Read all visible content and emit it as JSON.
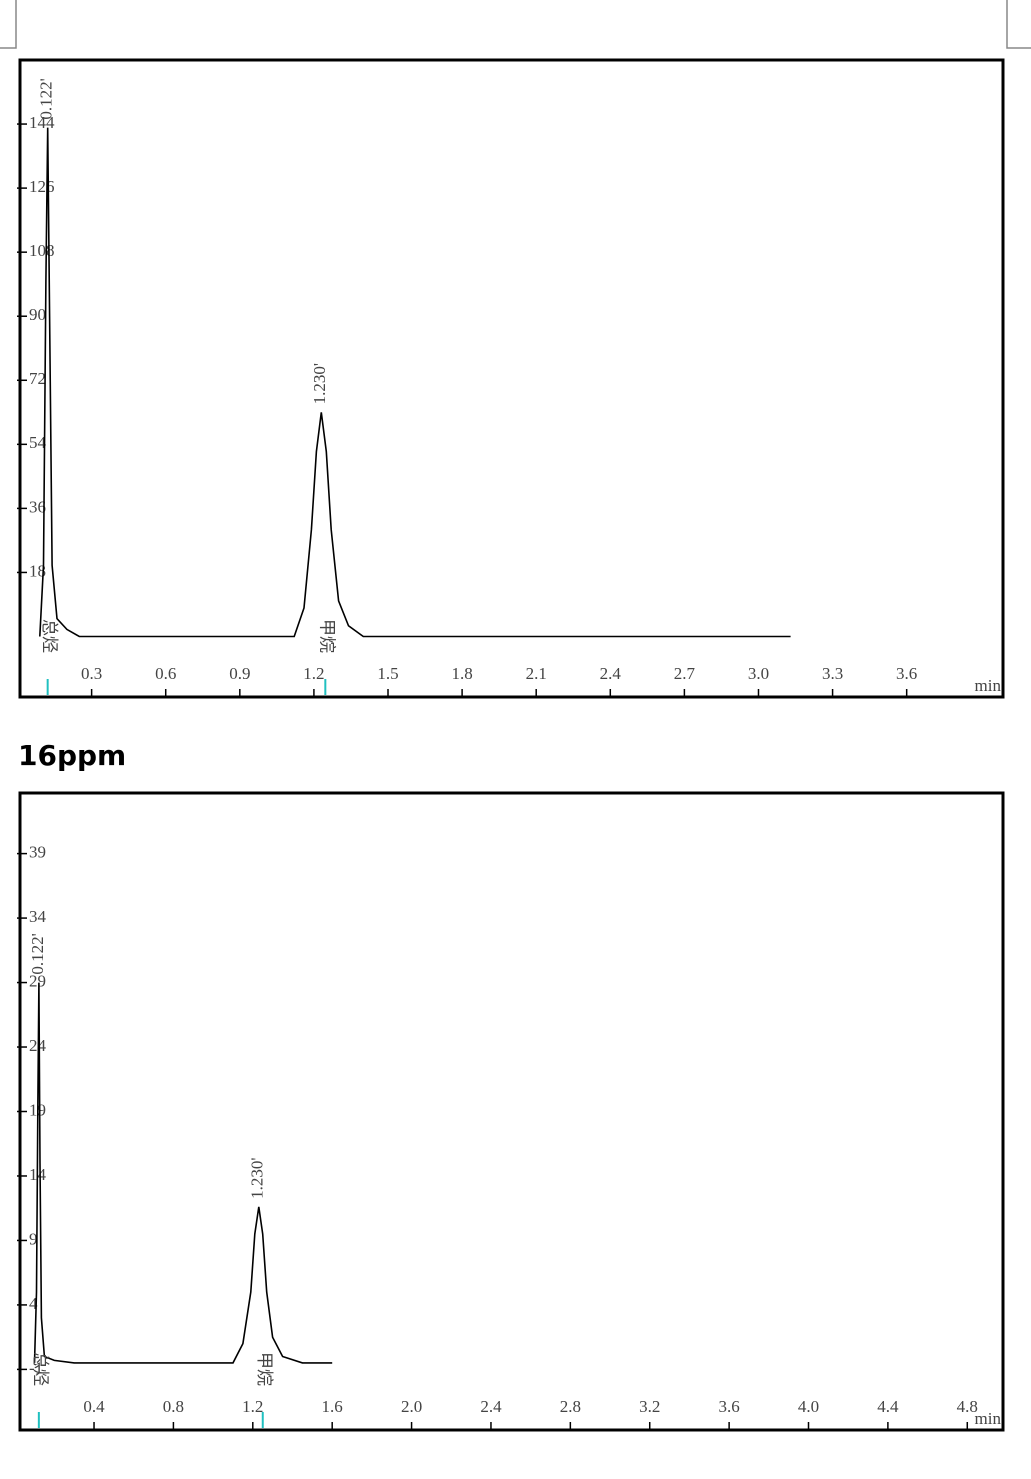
{
  "chart_data": [
    {
      "type": "line",
      "x_label": "min",
      "color": "#000000",
      "x": [
        0.09,
        0.105,
        0.115,
        0.122,
        0.13,
        0.14,
        0.16,
        0.2,
        0.25,
        1.12,
        1.16,
        1.19,
        1.21,
        1.23,
        1.25,
        1.27,
        1.3,
        1.34,
        1.4,
        3.13
      ],
      "values": [
        0,
        20,
        100,
        143,
        90,
        20,
        5,
        2,
        0,
        0,
        8,
        30,
        52,
        63,
        52,
        30,
        10,
        3,
        0,
        0
      ],
      "xlim": [
        0.01,
        3.99
      ],
      "ylim": [
        -17,
        162
      ],
      "xticks": [
        0.3,
        0.6,
        0.9,
        1.2,
        1.5,
        1.8,
        2.1,
        2.4,
        2.7,
        {
          "value": 3,
          "label": "3.0"
        },
        3.3,
        3.6
      ],
      "yticks": [
        18,
        36,
        54,
        72,
        90,
        108,
        126,
        144
      ],
      "peaks": [
        {
          "x": 0.122,
          "label": "0.122'",
          "name": "总烃"
        },
        {
          "x": 1.23,
          "label": "1.230'",
          "name": "甲烷"
        }
      ],
      "name_color": "#e020e0",
      "marker_color": "#20c0c0"
    },
    {
      "type": "line",
      "title": "16ppm",
      "x_label": "min",
      "color": "#000000",
      "x": [
        0.1,
        0.11,
        0.117,
        0.122,
        0.128,
        0.135,
        0.15,
        0.2,
        0.3,
        1.1,
        1.15,
        1.19,
        1.21,
        1.23,
        1.25,
        1.27,
        1.3,
        1.35,
        1.45,
        1.6
      ],
      "values": [
        -0.5,
        5,
        20,
        29,
        15,
        3,
        0,
        -0.3,
        -0.5,
        -0.5,
        1,
        5,
        9.5,
        11.6,
        9.5,
        5,
        1.5,
        0,
        -0.5,
        -0.5
      ],
      "xlim": [
        0.027,
        4.98
      ],
      "ylim": [
        -5.7,
        43.7
      ],
      "xticks": [
        0.4,
        0.8,
        1.2,
        1.6,
        {
          "value": 2,
          "label": "2.0"
        },
        2.4,
        2.8,
        3.2,
        3.6,
        {
          "value": 4,
          "label": "4.0"
        },
        4.4,
        4.8
      ],
      "yticks": [
        -1,
        4,
        9,
        14,
        19,
        24,
        29,
        34,
        39
      ],
      "peaks": [
        {
          "x": 0.122,
          "label": "0.122'",
          "name": "总烃"
        },
        {
          "x": 1.23,
          "label": "1.230'",
          "name": "甲烷"
        }
      ],
      "name_color": "#e020e0",
      "marker_color": "#20c0c0"
    }
  ]
}
